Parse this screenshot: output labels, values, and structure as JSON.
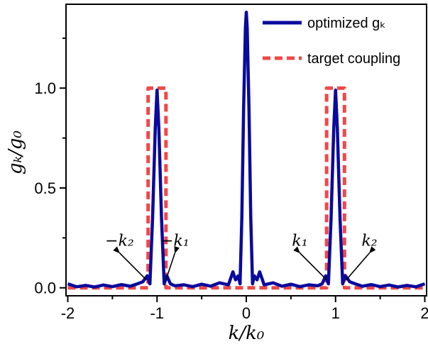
{
  "chart_data": {
    "type": "line",
    "xlabel": "k/k₀",
    "ylabel": "gₖ/g₀",
    "xlim": [
      -2.02,
      2.02
    ],
    "ylim": [
      -0.04,
      1.42
    ],
    "xticks": [
      -2,
      -1,
      0,
      1,
      2
    ],
    "xtick_labels": [
      "-2",
      "-1",
      "0",
      "1",
      "2"
    ],
    "yticks": [
      0.0,
      0.5,
      1.0
    ],
    "ytick_labels": [
      "0.0",
      "0.5",
      "1.0"
    ],
    "grid": false,
    "legend_position": "top-right",
    "series": [
      {
        "name": "optimized gₖ",
        "color": "#0a0a9c",
        "style": "solid",
        "points": [
          [
            -2.0,
            0.02
          ],
          [
            -1.9,
            0.005
          ],
          [
            -1.8,
            0.012
          ],
          [
            -1.7,
            0.004
          ],
          [
            -1.6,
            0.014
          ],
          [
            -1.5,
            0.006
          ],
          [
            -1.4,
            0.016
          ],
          [
            -1.3,
            0.008
          ],
          [
            -1.22,
            0.02
          ],
          [
            -1.16,
            0.03
          ],
          [
            -1.11,
            0.06
          ],
          [
            -1.08,
            0.02
          ],
          [
            -1.05,
            0.35
          ],
          [
            -1.02,
            0.8
          ],
          [
            -1.0,
            0.99
          ],
          [
            -0.98,
            0.8
          ],
          [
            -0.95,
            0.35
          ],
          [
            -0.92,
            0.02
          ],
          [
            -0.89,
            0.06
          ],
          [
            -0.85,
            0.02
          ],
          [
            -0.8,
            0.01
          ],
          [
            -0.7,
            0.015
          ],
          [
            -0.6,
            0.006
          ],
          [
            -0.5,
            0.018
          ],
          [
            -0.4,
            0.008
          ],
          [
            -0.3,
            0.025
          ],
          [
            -0.2,
            0.015
          ],
          [
            -0.15,
            0.08
          ],
          [
            -0.12,
            0.04
          ],
          [
            -0.09,
            0.06
          ],
          [
            -0.07,
            0.02
          ],
          [
            -0.05,
            0.35
          ],
          [
            -0.03,
            0.9
          ],
          [
            -0.01,
            1.3
          ],
          [
            0.0,
            1.38
          ],
          [
            0.01,
            1.3
          ],
          [
            0.03,
            0.9
          ],
          [
            0.05,
            0.35
          ],
          [
            0.07,
            0.02
          ],
          [
            0.09,
            0.06
          ],
          [
            0.12,
            0.04
          ],
          [
            0.15,
            0.08
          ],
          [
            0.2,
            0.015
          ],
          [
            0.3,
            0.025
          ],
          [
            0.4,
            0.008
          ],
          [
            0.5,
            0.018
          ],
          [
            0.6,
            0.006
          ],
          [
            0.7,
            0.015
          ],
          [
            0.8,
            0.01
          ],
          [
            0.85,
            0.02
          ],
          [
            0.89,
            0.06
          ],
          [
            0.92,
            0.02
          ],
          [
            0.95,
            0.35
          ],
          [
            0.98,
            0.8
          ],
          [
            1.0,
            0.99
          ],
          [
            1.02,
            0.8
          ],
          [
            1.05,
            0.35
          ],
          [
            1.08,
            0.02
          ],
          [
            1.11,
            0.06
          ],
          [
            1.16,
            0.03
          ],
          [
            1.22,
            0.02
          ],
          [
            1.3,
            0.008
          ],
          [
            1.4,
            0.016
          ],
          [
            1.5,
            0.006
          ],
          [
            1.6,
            0.014
          ],
          [
            1.7,
            0.004
          ],
          [
            1.8,
            0.012
          ],
          [
            1.9,
            0.005
          ],
          [
            2.0,
            0.02
          ]
        ]
      },
      {
        "name": "target coupling",
        "color": "#f04848",
        "style": "dashed",
        "points": [
          [
            -2.0,
            0.0
          ],
          [
            -1.1,
            0.0
          ],
          [
            -1.1,
            1.0
          ],
          [
            -0.9,
            1.0
          ],
          [
            -0.9,
            0.0
          ],
          [
            0.9,
            0.0
          ],
          [
            0.9,
            1.0
          ],
          [
            1.1,
            1.0
          ],
          [
            1.1,
            0.0
          ],
          [
            2.0,
            0.0
          ]
        ]
      }
    ],
    "annotations": [
      {
        "text": "−k₂",
        "x": -1.42,
        "y": 0.21,
        "arrow_to": [
          -1.12,
          0.04
        ]
      },
      {
        "text": "−k₁",
        "x": -0.8,
        "y": 0.21,
        "arrow_to": [
          -0.9,
          0.04
        ]
      },
      {
        "text": "k₁",
        "x": 0.6,
        "y": 0.21,
        "arrow_to": [
          0.9,
          0.04
        ]
      },
      {
        "text": "k₂",
        "x": 1.38,
        "y": 0.21,
        "arrow_to": [
          1.12,
          0.04
        ]
      }
    ]
  }
}
